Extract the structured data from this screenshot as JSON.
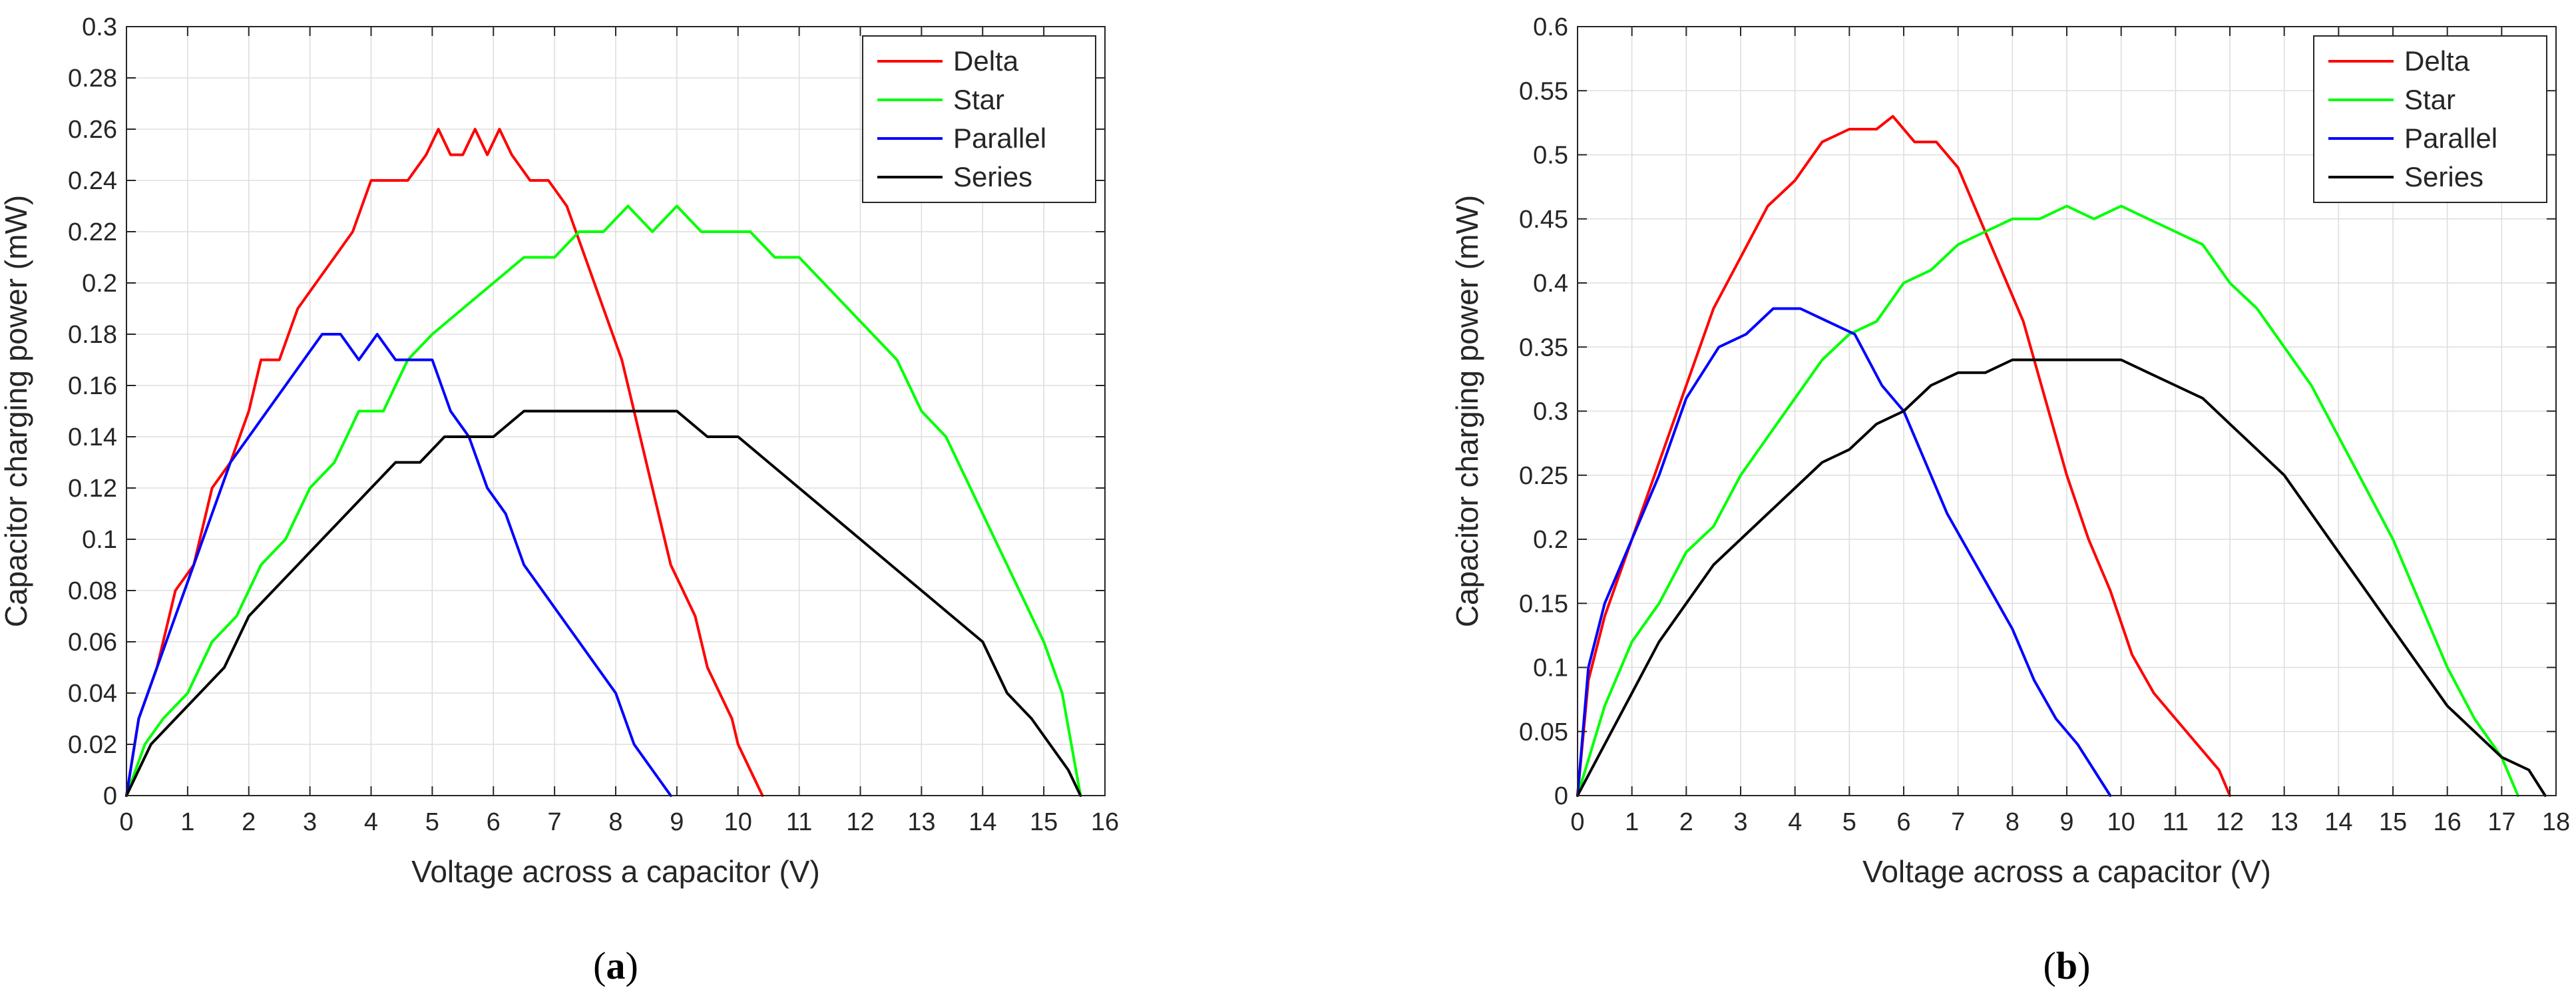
{
  "chart_data": [
    {
      "type": "line",
      "panel_label": "a",
      "title": "",
      "xlabel": "Voltage across a capacitor (V)",
      "ylabel": "Capacitor charging power (mW)",
      "xlim": [
        0,
        16
      ],
      "ylim": [
        0,
        0.3
      ],
      "x_ticks": [
        0,
        1,
        2,
        3,
        4,
        5,
        6,
        7,
        8,
        9,
        10,
        11,
        12,
        13,
        14,
        15,
        16
      ],
      "y_ticks": [
        0,
        0.02,
        0.04,
        0.06,
        0.08,
        0.1,
        0.12,
        0.14,
        0.16,
        0.18,
        0.2,
        0.22,
        0.24,
        0.26,
        0.28,
        0.3
      ],
      "x_tick_labels": [
        "0",
        "1",
        "2",
        "3",
        "4",
        "5",
        "6",
        "7",
        "8",
        "9",
        "10",
        "11",
        "12",
        "13",
        "14",
        "15",
        "16"
      ],
      "y_tick_labels": [
        "0",
        "0.02",
        "0.04",
        "0.06",
        "0.08",
        "0.1",
        "0.12",
        "0.14",
        "0.16",
        "0.18",
        "0.2",
        "0.22",
        "0.24",
        "0.26",
        "0.28",
        "0.3"
      ],
      "grid": true,
      "legend_position": "top-right",
      "series": [
        {
          "name": "Delta",
          "color": "#ff0000",
          "x": [
            0,
            0.2,
            0.5,
            0.8,
            1.1,
            1.4,
            1.7,
            2.0,
            2.2,
            2.5,
            2.8,
            3.1,
            3.4,
            3.7,
            4.0,
            4.2,
            4.6,
            4.9,
            5.1,
            5.3,
            5.5,
            5.7,
            5.9,
            6.1,
            6.3,
            6.6,
            6.9,
            7.2,
            7.5,
            7.8,
            8.1,
            8.3,
            8.5,
            8.7,
            8.9,
            9.1,
            9.3,
            9.5,
            9.7,
            9.9,
            10.0,
            10.2,
            10.4
          ],
          "y": [
            0,
            0.03,
            0.05,
            0.08,
            0.09,
            0.12,
            0.13,
            0.15,
            0.17,
            0.17,
            0.19,
            0.2,
            0.21,
            0.22,
            0.24,
            0.24,
            0.24,
            0.25,
            0.26,
            0.25,
            0.25,
            0.26,
            0.25,
            0.26,
            0.25,
            0.24,
            0.24,
            0.23,
            0.21,
            0.19,
            0.17,
            0.15,
            0.13,
            0.11,
            0.09,
            0.08,
            0.07,
            0.05,
            0.04,
            0.03,
            0.02,
            0.01,
            0
          ]
        },
        {
          "name": "Star",
          "color": "#00ff00",
          "x": [
            0,
            0.3,
            0.6,
            1.0,
            1.4,
            1.8,
            2.2,
            2.6,
            3.0,
            3.4,
            3.8,
            4.2,
            4.6,
            5.0,
            5.5,
            6.0,
            6.5,
            7.0,
            7.4,
            7.8,
            8.2,
            8.6,
            9.0,
            9.4,
            9.8,
            10.2,
            10.6,
            11.0,
            11.4,
            11.8,
            12.2,
            12.6,
            13.0,
            13.4,
            13.8,
            14.2,
            14.6,
            15.0,
            15.3,
            15.6
          ],
          "y": [
            0,
            0.02,
            0.03,
            0.04,
            0.06,
            0.07,
            0.09,
            0.1,
            0.12,
            0.13,
            0.15,
            0.15,
            0.17,
            0.18,
            0.19,
            0.2,
            0.21,
            0.21,
            0.22,
            0.22,
            0.23,
            0.22,
            0.23,
            0.22,
            0.22,
            0.22,
            0.21,
            0.21,
            0.2,
            0.19,
            0.18,
            0.17,
            0.15,
            0.14,
            0.12,
            0.1,
            0.08,
            0.06,
            0.04,
            0
          ]
        },
        {
          "name": "Parallel",
          "color": "#0000ff",
          "x": [
            0,
            0.2,
            0.5,
            0.8,
            1.1,
            1.4,
            1.7,
            2.0,
            2.3,
            2.6,
            2.9,
            3.2,
            3.5,
            3.8,
            4.1,
            4.4,
            4.7,
            5.0,
            5.3,
            5.6,
            5.9,
            6.2,
            6.5,
            6.8,
            7.1,
            7.4,
            7.7,
            8.0,
            8.3,
            8.6,
            8.9
          ],
          "y": [
            0,
            0.03,
            0.05,
            0.07,
            0.09,
            0.11,
            0.13,
            0.14,
            0.15,
            0.16,
            0.17,
            0.18,
            0.18,
            0.17,
            0.18,
            0.17,
            0.17,
            0.17,
            0.15,
            0.14,
            0.12,
            0.11,
            0.09,
            0.08,
            0.07,
            0.06,
            0.05,
            0.04,
            0.02,
            0.01,
            0
          ]
        },
        {
          "name": "Series",
          "color": "#000000",
          "x": [
            0,
            0.4,
            0.8,
            1.2,
            1.6,
            2.0,
            2.4,
            2.8,
            3.2,
            3.6,
            4.0,
            4.4,
            4.8,
            5.2,
            5.6,
            6.0,
            6.5,
            7.0,
            7.5,
            8.0,
            8.5,
            9.0,
            9.5,
            10.0,
            10.5,
            11.0,
            11.5,
            12.0,
            12.5,
            13.0,
            13.5,
            14.0,
            14.4,
            14.8,
            15.1,
            15.4,
            15.6
          ],
          "y": [
            0,
            0.02,
            0.03,
            0.04,
            0.05,
            0.07,
            0.08,
            0.09,
            0.1,
            0.11,
            0.12,
            0.13,
            0.13,
            0.14,
            0.14,
            0.14,
            0.15,
            0.15,
            0.15,
            0.15,
            0.15,
            0.15,
            0.14,
            0.14,
            0.13,
            0.12,
            0.11,
            0.1,
            0.09,
            0.08,
            0.07,
            0.06,
            0.04,
            0.03,
            0.02,
            0.01,
            0
          ]
        }
      ]
    },
    {
      "type": "line",
      "panel_label": "b",
      "title": "",
      "xlabel": "Voltage across a capacitor (V)",
      "ylabel": "Capacitor charging power (mW)",
      "xlim": [
        0,
        18
      ],
      "ylim": [
        0,
        0.6
      ],
      "x_ticks": [
        0,
        1,
        2,
        3,
        4,
        5,
        6,
        7,
        8,
        9,
        10,
        11,
        12,
        13,
        14,
        15,
        16,
        17,
        18
      ],
      "y_ticks": [
        0,
        0.05,
        0.1,
        0.15,
        0.2,
        0.25,
        0.3,
        0.35,
        0.4,
        0.45,
        0.5,
        0.55,
        0.6
      ],
      "x_tick_labels": [
        "0",
        "1",
        "2",
        "3",
        "4",
        "5",
        "6",
        "7",
        "8",
        "9",
        "10",
        "11",
        "12",
        "13",
        "14",
        "15",
        "16",
        "17",
        "18"
      ],
      "y_tick_labels": [
        "0",
        "0.05",
        "0.1",
        "0.15",
        "0.2",
        "0.25",
        "0.3",
        "0.35",
        "0.4",
        "0.45",
        "0.5",
        "0.55",
        "0.6"
      ],
      "grid": true,
      "legend_position": "top-right",
      "series": [
        {
          "name": "Delta",
          "color": "#ff0000",
          "x": [
            0,
            0.2,
            0.5,
            1.0,
            1.5,
            2.0,
            2.5,
            3.0,
            3.5,
            4.0,
            4.5,
            5.0,
            5.5,
            5.8,
            6.2,
            6.6,
            7.0,
            7.4,
            7.8,
            8.2,
            8.6,
            9.0,
            9.4,
            9.8,
            10.2,
            10.6,
            11.0,
            11.4,
            11.8,
            12.0
          ],
          "y": [
            0,
            0.09,
            0.14,
            0.2,
            0.26,
            0.32,
            0.38,
            0.42,
            0.46,
            0.48,
            0.51,
            0.52,
            0.52,
            0.53,
            0.51,
            0.51,
            0.49,
            0.45,
            0.41,
            0.37,
            0.31,
            0.25,
            0.2,
            0.16,
            0.11,
            0.08,
            0.06,
            0.04,
            0.02,
            0
          ]
        },
        {
          "name": "Star",
          "color": "#00ff00",
          "x": [
            0,
            0.5,
            1.0,
            1.5,
            2.0,
            2.5,
            3.0,
            3.5,
            4.0,
            4.5,
            5.0,
            5.5,
            6.0,
            6.5,
            7.0,
            7.5,
            8.0,
            8.5,
            9.0,
            9.5,
            10.0,
            10.5,
            11.0,
            11.5,
            12.0,
            12.5,
            13.0,
            13.5,
            14.0,
            14.5,
            15.0,
            15.5,
            16.0,
            16.5,
            17.0,
            17.3
          ],
          "y": [
            0,
            0.07,
            0.12,
            0.15,
            0.19,
            0.21,
            0.25,
            0.28,
            0.31,
            0.34,
            0.36,
            0.37,
            0.4,
            0.41,
            0.43,
            0.44,
            0.45,
            0.45,
            0.46,
            0.45,
            0.46,
            0.45,
            0.44,
            0.43,
            0.4,
            0.38,
            0.35,
            0.32,
            0.28,
            0.24,
            0.2,
            0.15,
            0.1,
            0.06,
            0.03,
            0
          ]
        },
        {
          "name": "Parallel",
          "color": "#0000ff",
          "x": [
            0,
            0.2,
            0.5,
            1.0,
            1.5,
            2.0,
            2.6,
            3.1,
            3.6,
            4.1,
            4.6,
            5.1,
            5.6,
            6.0,
            6.4,
            6.8,
            7.2,
            7.6,
            8.0,
            8.4,
            8.8,
            9.2,
            9.5,
            9.8
          ],
          "y": [
            0,
            0.1,
            0.15,
            0.2,
            0.25,
            0.31,
            0.35,
            0.36,
            0.38,
            0.38,
            0.37,
            0.36,
            0.32,
            0.3,
            0.26,
            0.22,
            0.19,
            0.16,
            0.13,
            0.09,
            0.06,
            0.04,
            0.02,
            0
          ]
        },
        {
          "name": "Series",
          "color": "#000000",
          "x": [
            0,
            0.5,
            1.0,
            1.5,
            2.0,
            2.5,
            3.0,
            3.5,
            4.0,
            4.5,
            5.0,
            5.5,
            6.0,
            6.5,
            7.0,
            7.5,
            8.0,
            8.5,
            9.0,
            9.5,
            10.0,
            10.5,
            11.0,
            11.5,
            12.0,
            12.5,
            13.0,
            13.5,
            14.0,
            14.5,
            15.0,
            15.5,
            16.0,
            16.5,
            17.0,
            17.5,
            17.8
          ],
          "y": [
            0,
            0.04,
            0.08,
            0.12,
            0.15,
            0.18,
            0.2,
            0.22,
            0.24,
            0.26,
            0.27,
            0.29,
            0.3,
            0.32,
            0.33,
            0.33,
            0.34,
            0.34,
            0.34,
            0.34,
            0.34,
            0.33,
            0.32,
            0.31,
            0.29,
            0.27,
            0.25,
            0.22,
            0.19,
            0.16,
            0.13,
            0.1,
            0.07,
            0.05,
            0.03,
            0.02,
            0
          ]
        }
      ]
    }
  ]
}
